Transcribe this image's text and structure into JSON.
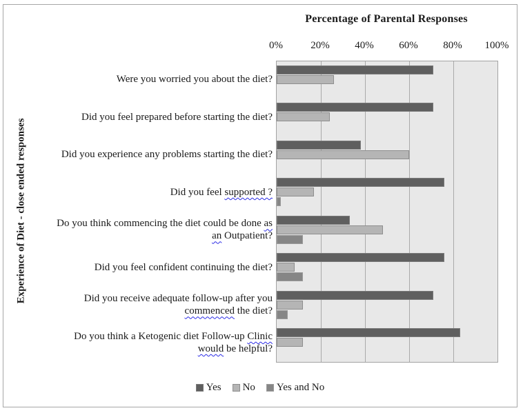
{
  "figure": {
    "background_color": "#ffffff",
    "plot_background_color": "#e8e8e8",
    "gridline_color": "#a9a9a9",
    "border_color": "#a6a6a6",
    "spellcheck_underline_color": "#2a2ae6"
  },
  "chart_data": {
    "type": "bar",
    "orientation": "horizontal",
    "title": "Percentage of Parental Responses",
    "ylabel": "Experience of Diet - close ended responses",
    "xlim": [
      0,
      100
    ],
    "x_ticks": [
      "0%",
      "20%",
      "40%",
      "60%",
      "80%",
      "100%"
    ],
    "gridlines": true,
    "legend_position": "bottom",
    "categories": [
      "Were you worried you about the diet?",
      "Did you feel prepared before starting the diet?",
      "Did you experience any problems starting the diet?",
      "Did you feel supported ?",
      "Do you think commencing the diet could be done as an Outpatient?",
      "Did you feel confident continuing the diet?",
      "Did you receive adequate follow-up after you commenced the diet?",
      "Do you think a Ketogenic diet Follow-up Clinic would be helpful?"
    ],
    "category_label_parts": [
      [
        {
          "t": "Were you worried you about the diet?"
        }
      ],
      [
        {
          "t": "Did you feel prepared before starting the diet?"
        }
      ],
      [
        {
          "t": "Did you experience any problems starting the diet?"
        }
      ],
      [
        {
          "t": "Did you feel "
        },
        {
          "t": "supported ?",
          "wavy": true
        }
      ],
      [
        {
          "t": "Do you think commencing the diet could be done "
        },
        {
          "t": "as",
          "wavy": true
        },
        {
          "br": true
        },
        {
          "t": "an",
          "wavy": true
        },
        {
          "t": " Outpatient?"
        }
      ],
      [
        {
          "t": "Did you feel confident continuing the diet?"
        }
      ],
      [
        {
          "t": "Did you receive adequate follow-up after you"
        },
        {
          "br": true
        },
        {
          "t": "commenced",
          "wavy": true
        },
        {
          "t": " the diet?"
        }
      ],
      [
        {
          "t": "Do you think a Ketogenic diet Follow-up "
        },
        {
          "t": "Clinic",
          "wavy": true
        },
        {
          "br": true
        },
        {
          "t": "would",
          "wavy": true
        },
        {
          "t": " be helpful?"
        }
      ]
    ],
    "series": [
      {
        "name": "Yes",
        "color": "#5f5f5f",
        "border_color": "#7a7a7a",
        "values": [
          71,
          71,
          38,
          76,
          33,
          76,
          71,
          83
        ]
      },
      {
        "name": "No",
        "color": "#b5b5b5",
        "border_color": "#8e8e8e",
        "values": [
          26,
          24,
          60,
          17,
          48,
          8,
          12,
          12
        ]
      },
      {
        "name": "Yes and No",
        "color": "#868686",
        "border_color": "#9a9a9a",
        "values": [
          0,
          0,
          0,
          2,
          12,
          12,
          5,
          0
        ]
      }
    ]
  }
}
